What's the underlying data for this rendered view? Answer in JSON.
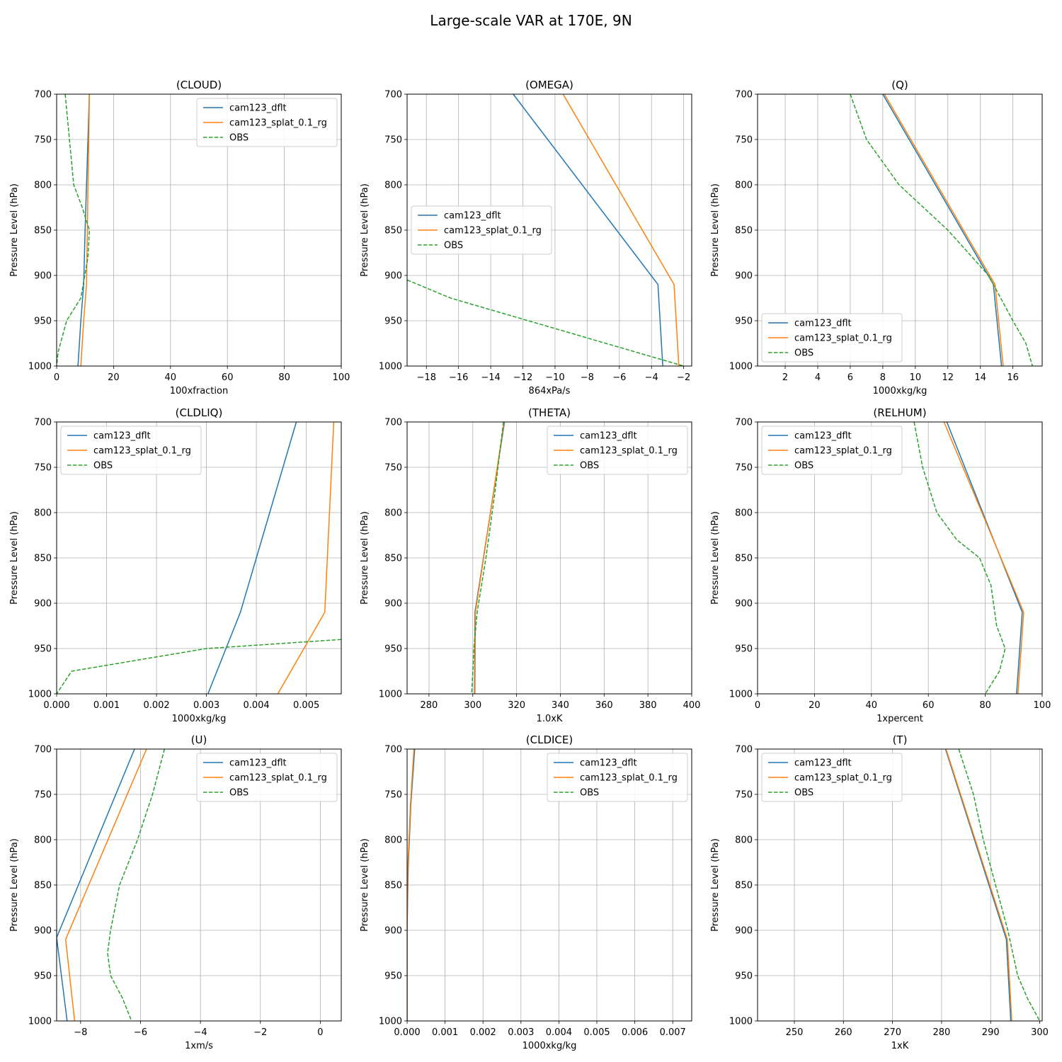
{
  "figure": {
    "suptitle": "Large-scale VAR at 170E, 9N"
  },
  "colors": {
    "cam123_dflt": "#1f77b4",
    "cam123_splat_0.1_rg": "#ff7f0e",
    "OBS": "#2ca02c"
  },
  "chart_data": [
    {
      "type": "line",
      "title": "(CLOUD)",
      "xlabel": "100xfraction",
      "ylabel": "Pressure Level (hPa)",
      "xlim": [
        0,
        100
      ],
      "ylim": [
        1000,
        700
      ],
      "y_inverted": true,
      "xticks": [
        0,
        20,
        40,
        60,
        80,
        100
      ],
      "xtick_labels": [
        "0",
        "20",
        "40",
        "60",
        "80",
        "100"
      ],
      "yticks": [
        700,
        750,
        800,
        850,
        900,
        950,
        1000
      ],
      "ytick_labels": [
        "700",
        "750",
        "800",
        "850",
        "900",
        "950",
        "1000"
      ],
      "legend": "upper-right",
      "grid": true,
      "series": [
        {
          "name": "cam123_dflt",
          "style": "solid",
          "x": [
            11.5,
            11.0,
            10.5,
            10.0,
            9.5,
            8.5,
            7.5
          ],
          "y": [
            700,
            750,
            800,
            850,
            910,
            950,
            1000
          ]
        },
        {
          "name": "cam123_splat_0.1_rg",
          "style": "solid",
          "x": [
            11.5,
            11.3,
            11.0,
            10.8,
            10.5,
            9.5,
            8.5
          ],
          "y": [
            700,
            750,
            800,
            850,
            910,
            950,
            1000
          ]
        },
        {
          "name": "OBS",
          "style": "dashed",
          "x": [
            3.0,
            4.5,
            6.0,
            9.0,
            11.5,
            11.0,
            8.5,
            3.5,
            0.5,
            0.0
          ],
          "y": [
            700,
            750,
            800,
            825,
            850,
            880,
            925,
            950,
            985,
            1000
          ]
        }
      ]
    },
    {
      "type": "line",
      "title": "(OMEGA)",
      "xlabel": "864xPa/s",
      "ylabel": "Pressure Level (hPa)",
      "xlim": [
        -19.2,
        -1.5
      ],
      "ylim": [
        1000,
        700
      ],
      "y_inverted": true,
      "xticks": [
        -18,
        -16,
        -14,
        -12,
        -10,
        -8,
        -6,
        -4,
        -2
      ],
      "xtick_labels": [
        "−18",
        "−16",
        "−14",
        "−12",
        "−10",
        "−8",
        "−6",
        "−4",
        "−2"
      ],
      "yticks": [
        700,
        750,
        800,
        850,
        900,
        950,
        1000
      ],
      "ytick_labels": [
        "700",
        "750",
        "800",
        "850",
        "900",
        "950",
        "1000"
      ],
      "legend": "center-left",
      "grid": true,
      "series": [
        {
          "name": "cam123_dflt",
          "style": "solid",
          "x": [
            -12.6,
            -3.6,
            -3.3
          ],
          "y": [
            700,
            910,
            1000
          ]
        },
        {
          "name": "cam123_splat_0.1_rg",
          "style": "solid",
          "x": [
            -9.5,
            -2.6,
            -2.3
          ],
          "y": [
            700,
            910,
            1000
          ]
        },
        {
          "name": "OBS",
          "style": "dashed",
          "x": [
            -19.2,
            -16.5,
            -2.0
          ],
          "y": [
            905,
            925,
            1000
          ]
        }
      ]
    },
    {
      "type": "line",
      "title": "(Q)",
      "xlabel": "1000xkg/kg",
      "ylabel": "Pressure Level (hPa)",
      "xlim": [
        0.3,
        17.8
      ],
      "ylim": [
        1000,
        700
      ],
      "y_inverted": true,
      "xticks": [
        2,
        4,
        6,
        8,
        10,
        12,
        14,
        16
      ],
      "xtick_labels": [
        "2",
        "4",
        "6",
        "8",
        "10",
        "12",
        "14",
        "16"
      ],
      "yticks": [
        700,
        750,
        800,
        850,
        900,
        950,
        1000
      ],
      "ytick_labels": [
        "700",
        "750",
        "800",
        "850",
        "900",
        "950",
        "1000"
      ],
      "legend": "lower-left",
      "grid": true,
      "series": [
        {
          "name": "cam123_dflt",
          "style": "solid",
          "x": [
            8.0,
            14.8,
            15.3
          ],
          "y": [
            700,
            910,
            1000
          ]
        },
        {
          "name": "cam123_splat_0.1_rg",
          "style": "solid",
          "x": [
            8.1,
            14.9,
            15.4
          ],
          "y": [
            700,
            910,
            1000
          ]
        },
        {
          "name": "OBS",
          "style": "dashed",
          "x": [
            6.0,
            7.0,
            9.0,
            12.0,
            14.5,
            16.0,
            16.8,
            17.2
          ],
          "y": [
            700,
            750,
            800,
            850,
            900,
            950,
            975,
            1000
          ]
        }
      ]
    },
    {
      "type": "line",
      "title": "(CLDLIQ)",
      "xlabel": "1000xkg/kg",
      "ylabel": "Pressure Level (hPa)",
      "xlim": [
        0,
        0.0057
      ],
      "ylim": [
        1000,
        700
      ],
      "y_inverted": true,
      "xticks": [
        0,
        0.001,
        0.002,
        0.003,
        0.004,
        0.005
      ],
      "xtick_labels": [
        "0.000",
        "0.001",
        "0.002",
        "0.003",
        "0.004",
        "0.005"
      ],
      "yticks": [
        700,
        750,
        800,
        850,
        900,
        950,
        1000
      ],
      "ytick_labels": [
        "700",
        "750",
        "800",
        "850",
        "900",
        "950",
        "1000"
      ],
      "legend": "upper-left",
      "grid": true,
      "series": [
        {
          "name": "cam123_dflt",
          "style": "solid",
          "x": [
            0.0048,
            0.00368,
            0.00303
          ],
          "y": [
            700,
            910,
            1000
          ]
        },
        {
          "name": "cam123_splat_0.1_rg",
          "style": "solid",
          "x": [
            0.00555,
            0.00537,
            0.00443
          ],
          "y": [
            700,
            910,
            1000
          ]
        },
        {
          "name": "OBS",
          "style": "dashed",
          "x": [
            0.0057,
            0.003,
            0.0003,
            0.0
          ],
          "y": [
            940,
            950,
            975,
            1000
          ]
        }
      ]
    },
    {
      "type": "line",
      "title": "(THETA)",
      "xlabel": "1.0xK",
      "ylabel": "Pressure Level (hPa)",
      "xlim": [
        270,
        400
      ],
      "ylim": [
        1000,
        700
      ],
      "y_inverted": true,
      "xticks": [
        280,
        300,
        320,
        340,
        360,
        380,
        400
      ],
      "xtick_labels": [
        "280",
        "300",
        "320",
        "340",
        "360",
        "380",
        "400"
      ],
      "yticks": [
        700,
        750,
        800,
        850,
        900,
        950,
        1000
      ],
      "ytick_labels": [
        "700",
        "750",
        "800",
        "850",
        "900",
        "950",
        "1000"
      ],
      "legend": "upper-right",
      "grid": true,
      "series": [
        {
          "name": "cam123_dflt",
          "style": "solid",
          "x": [
            314.5,
            301.0,
            300.8
          ],
          "y": [
            700,
            910,
            1000
          ]
        },
        {
          "name": "cam123_splat_0.1_rg",
          "style": "solid",
          "x": [
            314.3,
            301.2,
            301.0
          ],
          "y": [
            700,
            910,
            1000
          ]
        },
        {
          "name": "OBS",
          "style": "dashed",
          "x": [
            314.0,
            310.0,
            306.0,
            302.0,
            300.5,
            299.5
          ],
          "y": [
            700,
            780,
            850,
            910,
            950,
            1000
          ]
        }
      ]
    },
    {
      "type": "line",
      "title": "(RELHUM)",
      "xlabel": "1xpercent",
      "ylabel": "Pressure Level (hPa)",
      "xlim": [
        0,
        100
      ],
      "ylim": [
        1000,
        700
      ],
      "y_inverted": true,
      "xticks": [
        0,
        20,
        40,
        60,
        80,
        100
      ],
      "xtick_labels": [
        "0",
        "20",
        "40",
        "60",
        "80",
        "100"
      ],
      "yticks": [
        700,
        750,
        800,
        850,
        900,
        950,
        1000
      ],
      "ytick_labels": [
        "700",
        "750",
        "800",
        "850",
        "900",
        "950",
        "1000"
      ],
      "legend": "upper-left",
      "grid": true,
      "series": [
        {
          "name": "cam123_dflt",
          "style": "solid",
          "x": [
            66.5,
            93.0,
            91.0
          ],
          "y": [
            700,
            910,
            1000
          ]
        },
        {
          "name": "cam123_splat_0.1_rg",
          "style": "solid",
          "x": [
            65.5,
            93.5,
            91.5
          ],
          "y": [
            700,
            910,
            1000
          ]
        },
        {
          "name": "OBS",
          "style": "dashed",
          "x": [
            55.0,
            58.0,
            63.0,
            70.0,
            78.0,
            82.0,
            84.0,
            87.0,
            85.0,
            80.0
          ],
          "y": [
            700,
            750,
            800,
            830,
            850,
            880,
            925,
            950,
            975,
            1000
          ]
        }
      ]
    },
    {
      "type": "line",
      "title": "(U)",
      "xlabel": "1xm/s",
      "ylabel": "Pressure Level (hPa)",
      "xlim": [
        -8.8,
        0.7
      ],
      "ylim": [
        1000,
        700
      ],
      "y_inverted": true,
      "xticks": [
        -8,
        -6,
        -4,
        -2,
        0
      ],
      "xtick_labels": [
        "−8",
        "−6",
        "−4",
        "−2",
        "0"
      ],
      "yticks": [
        700,
        750,
        800,
        850,
        900,
        950,
        1000
      ],
      "ytick_labels": [
        "700",
        "750",
        "800",
        "850",
        "900",
        "950",
        "1000"
      ],
      "legend": "upper-right",
      "grid": true,
      "series": [
        {
          "name": "cam123_dflt",
          "style": "solid",
          "x": [
            -6.2,
            -8.8,
            -8.45
          ],
          "y": [
            700,
            908,
            1000
          ]
        },
        {
          "name": "cam123_splat_0.1_rg",
          "style": "solid",
          "x": [
            -5.8,
            -8.5,
            -8.2
          ],
          "y": [
            700,
            910,
            1000
          ]
        },
        {
          "name": "OBS",
          "style": "dashed",
          "x": [
            -5.2,
            -5.6,
            -6.1,
            -6.7,
            -7.0,
            -7.1,
            -7.0,
            -6.6,
            -6.3
          ],
          "y": [
            700,
            750,
            800,
            850,
            900,
            925,
            950,
            975,
            1000
          ]
        }
      ]
    },
    {
      "type": "line",
      "title": "(CLDICE)",
      "xlabel": "1000xkg/kg",
      "ylabel": "Pressure Level (hPa)",
      "xlim": [
        0,
        0.0075
      ],
      "ylim": [
        1000,
        700
      ],
      "y_inverted": true,
      "xticks": [
        0,
        0.001,
        0.002,
        0.003,
        0.004,
        0.005,
        0.006,
        0.007
      ],
      "xtick_labels": [
        "0.000",
        "0.001",
        "0.002",
        "0.003",
        "0.004",
        "0.005",
        "0.006",
        "0.007"
      ],
      "yticks": [
        700,
        750,
        800,
        850,
        900,
        950,
        1000
      ],
      "ytick_labels": [
        "700",
        "750",
        "800",
        "850",
        "900",
        "950",
        "1000"
      ],
      "legend": "upper-right",
      "grid": true,
      "series": [
        {
          "name": "cam123_dflt",
          "style": "solid",
          "x": [
            0.0002,
            0.0001,
            3e-05,
            0.0,
            0.0
          ],
          "y": [
            700,
            760,
            830,
            900,
            1000
          ]
        },
        {
          "name": "cam123_splat_0.1_rg",
          "style": "solid",
          "x": [
            0.00018,
            9e-05,
            2e-05,
            0.0,
            0.0
          ],
          "y": [
            700,
            760,
            830,
            900,
            1000
          ]
        },
        {
          "name": "OBS",
          "style": "dashed",
          "x": [],
          "y": []
        }
      ]
    },
    {
      "type": "line",
      "title": "(T)",
      "xlabel": "1xK",
      "ylabel": "Pressure Level (hPa)",
      "xlim": [
        242.5,
        300.5
      ],
      "ylim": [
        1000,
        700
      ],
      "y_inverted": true,
      "xticks": [
        250,
        260,
        270,
        280,
        290,
        300
      ],
      "xtick_labels": [
        "250",
        "260",
        "270",
        "280",
        "290",
        "300"
      ],
      "yticks": [
        700,
        750,
        800,
        850,
        900,
        950,
        1000
      ],
      "ytick_labels": [
        "700",
        "750",
        "800",
        "850",
        "900",
        "950",
        "1000"
      ],
      "legend": "upper-left",
      "grid": true,
      "series": [
        {
          "name": "cam123_dflt",
          "style": "solid",
          "x": [
            280.8,
            293.2,
            294.1
          ],
          "y": [
            700,
            910,
            1000
          ]
        },
        {
          "name": "cam123_splat_0.1_rg",
          "style": "solid",
          "x": [
            280.9,
            293.4,
            294.3
          ],
          "y": [
            700,
            910,
            1000
          ]
        },
        {
          "name": "OBS",
          "style": "dashed",
          "x": [
            283.5,
            286.5,
            288.5,
            291.0,
            293.5,
            295.5,
            297.5,
            300.0
          ],
          "y": [
            700,
            750,
            800,
            850,
            900,
            950,
            975,
            1000
          ]
        }
      ]
    }
  ]
}
